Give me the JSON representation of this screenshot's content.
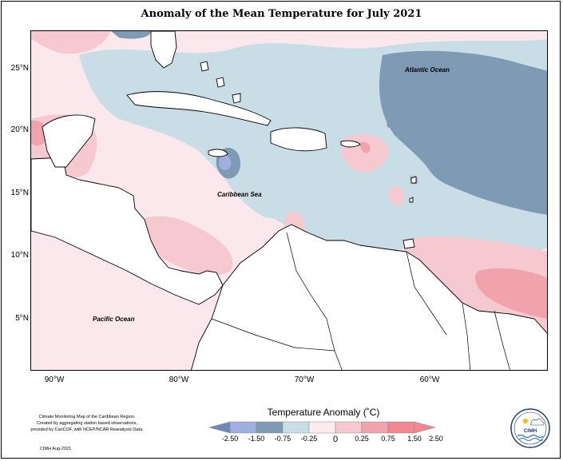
{
  "title": "Anomaly of the Mean Temperature for July 2021",
  "map": {
    "latitude_labels": [
      "25°N",
      "20°N",
      "15°N",
      "10°N",
      "5°N"
    ],
    "longitude_labels": [
      "90°W",
      "80°W",
      "70°W",
      "60°W"
    ],
    "place_labels": {
      "atlantic": "Atlantic Ocean",
      "caribbean": "Caribbean Sea",
      "pacific": "Pacific Ocean"
    },
    "colors": {
      "land_fill": "#ffffff",
      "coastline": "#000000"
    }
  },
  "legend": {
    "title": "Temperature Anomaly (˚C)",
    "ticks": [
      "-2.50",
      "-1.50",
      "-0.75",
      "-0.25",
      "0",
      "0.25",
      "0.75",
      "1.50",
      "2.50"
    ],
    "colors": [
      "#6f86b8",
      "#9fb0df",
      "#7f9ab5",
      "#c9dde6",
      "#fdecef",
      "#f6c9d0",
      "#f1a3ad",
      "#f08890"
    ]
  },
  "credit": {
    "lines": [
      "Climate Monitoring Map of the Caribbean Region.",
      "Created by aggregating station based observations,",
      "provided by CariCOF, with NCEP/NCAR Reanalysis Data."
    ],
    "date": "CIMH Aug-2021"
  },
  "logo": {
    "text": "CIMH"
  }
}
